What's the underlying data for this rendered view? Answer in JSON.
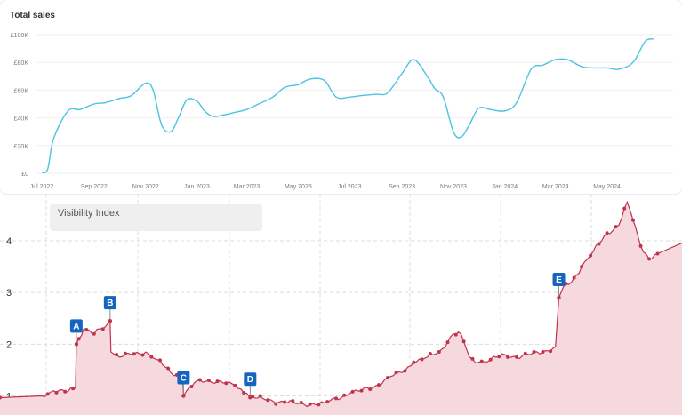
{
  "chart_data": [
    {
      "type": "line",
      "title": "Total sales",
      "color": "#4cc3e0",
      "x_tick_labels": [
        "Jul 2022",
        "Sep 2022",
        "Nov 2022",
        "Jan 2023",
        "Mar 2023",
        "May 2023",
        "Jul 2023",
        "Sep 2023",
        "Nov 2023",
        "Jan 2024",
        "Mar 2024",
        "May 2024"
      ],
      "y_tick_labels": [
        "£0",
        "£20K",
        "£40K",
        "£60K",
        "£80K",
        "£100K"
      ],
      "ylim": [
        0,
        100000
      ],
      "grid": true,
      "x": [
        "2022-07-01",
        "2022-07-08",
        "2022-07-15",
        "2022-08-01",
        "2022-08-15",
        "2022-09-01",
        "2022-09-15",
        "2022-10-01",
        "2022-10-15",
        "2022-11-01",
        "2022-11-10",
        "2022-11-20",
        "2022-12-01",
        "2022-12-10",
        "2022-12-20",
        "2023-01-01",
        "2023-01-10",
        "2023-01-20",
        "2023-02-01",
        "2023-02-15",
        "2023-03-01",
        "2023-03-15",
        "2023-04-01",
        "2023-04-15",
        "2023-05-01",
        "2023-05-15",
        "2023-06-01",
        "2023-06-15",
        "2023-07-01",
        "2023-07-15",
        "2023-08-01",
        "2023-08-15",
        "2023-09-01",
        "2023-09-15",
        "2023-10-01",
        "2023-10-10",
        "2023-10-20",
        "2023-11-01",
        "2023-11-10",
        "2023-11-20",
        "2023-12-01",
        "2023-12-15",
        "2024-01-01",
        "2024-01-15",
        "2024-02-01",
        "2024-02-15",
        "2024-03-01",
        "2024-03-15",
        "2024-04-01",
        "2024-04-15",
        "2024-05-01",
        "2024-05-15",
        "2024-06-01",
        "2024-06-15",
        "2024-06-25"
      ],
      "values": [
        500,
        3000,
        25000,
        45000,
        46000,
        50000,
        51000,
        54000,
        56000,
        65000,
        60000,
        35000,
        30000,
        40000,
        53000,
        52000,
        45000,
        41000,
        42000,
        44000,
        46000,
        50000,
        55000,
        62000,
        64000,
        68000,
        67000,
        55000,
        55000,
        56000,
        57000,
        58000,
        72000,
        82000,
        70000,
        61000,
        55000,
        30000,
        26000,
        35000,
        47000,
        46000,
        45000,
        51000,
        75000,
        78000,
        82000,
        82000,
        77000,
        76000,
        76000,
        75000,
        80000,
        95000,
        97000
      ]
    },
    {
      "type": "area",
      "title": "",
      "series_name": "Visibility Index",
      "color": "#c0334d",
      "fill": "#f5d9de",
      "y_tick_labels": [
        "1",
        "2",
        "3",
        "4"
      ],
      "ylim": [
        0.75,
        4.85
      ],
      "grid": true,
      "x": [
        "2022-07-01",
        "2022-07-15",
        "2022-08-01",
        "2022-08-10",
        "2022-08-11",
        "2022-08-20",
        "2022-09-01",
        "2022-09-15",
        "2022-09-20",
        "2022-09-21",
        "2022-10-01",
        "2022-10-15",
        "2022-11-01",
        "2022-11-15",
        "2022-12-01",
        "2022-12-15",
        "2022-12-16",
        "2023-01-01",
        "2023-01-15",
        "2023-02-01",
        "2023-02-15",
        "2023-03-01",
        "2023-03-05",
        "2023-03-20",
        "2023-04-01",
        "2023-04-15",
        "2023-05-01",
        "2023-05-15",
        "2023-06-01",
        "2023-06-15",
        "2023-07-01",
        "2023-07-15",
        "2023-08-01",
        "2023-08-15",
        "2023-09-01",
        "2023-09-15",
        "2023-10-01",
        "2023-10-15",
        "2023-11-01",
        "2023-11-10",
        "2023-11-20",
        "2023-12-01",
        "2023-12-15",
        "2024-01-01",
        "2024-01-15",
        "2024-02-01",
        "2024-02-15",
        "2024-03-01",
        "2024-03-05",
        "2024-03-10",
        "2024-03-20",
        "2024-04-01",
        "2024-04-15",
        "2024-05-01",
        "2024-05-15",
        "2024-05-25",
        "2024-06-01",
        "2024-06-10",
        "2024-06-20",
        "2024-06-30"
      ],
      "values": [
        1.0,
        1.1,
        1.08,
        1.15,
        2.0,
        2.3,
        2.2,
        2.35,
        2.45,
        1.85,
        1.75,
        1.8,
        1.85,
        1.7,
        1.45,
        1.4,
        1.0,
        1.3,
        1.3,
        1.25,
        1.2,
        1.05,
        0.97,
        0.95,
        0.9,
        0.88,
        0.85,
        0.84,
        0.86,
        0.95,
        1.05,
        1.1,
        1.2,
        1.35,
        1.45,
        1.65,
        1.75,
        1.85,
        2.2,
        2.2,
        1.75,
        1.65,
        1.7,
        1.8,
        1.75,
        1.8,
        1.85,
        1.95,
        2.9,
        3.1,
        3.2,
        3.5,
        3.8,
        4.15,
        4.3,
        4.75,
        4.4,
        3.9,
        3.65,
        3.75
      ],
      "annotations": [
        {
          "label": "A",
          "x": "2022-08-11",
          "value": 2.0
        },
        {
          "label": "B",
          "x": "2022-09-20",
          "value": 2.45
        },
        {
          "label": "C",
          "x": "2022-12-16",
          "value": 1.0
        },
        {
          "label": "D",
          "x": "2023-03-05",
          "value": 0.97
        },
        {
          "label": "E",
          "x": "2024-03-05",
          "value": 2.9
        }
      ]
    }
  ]
}
